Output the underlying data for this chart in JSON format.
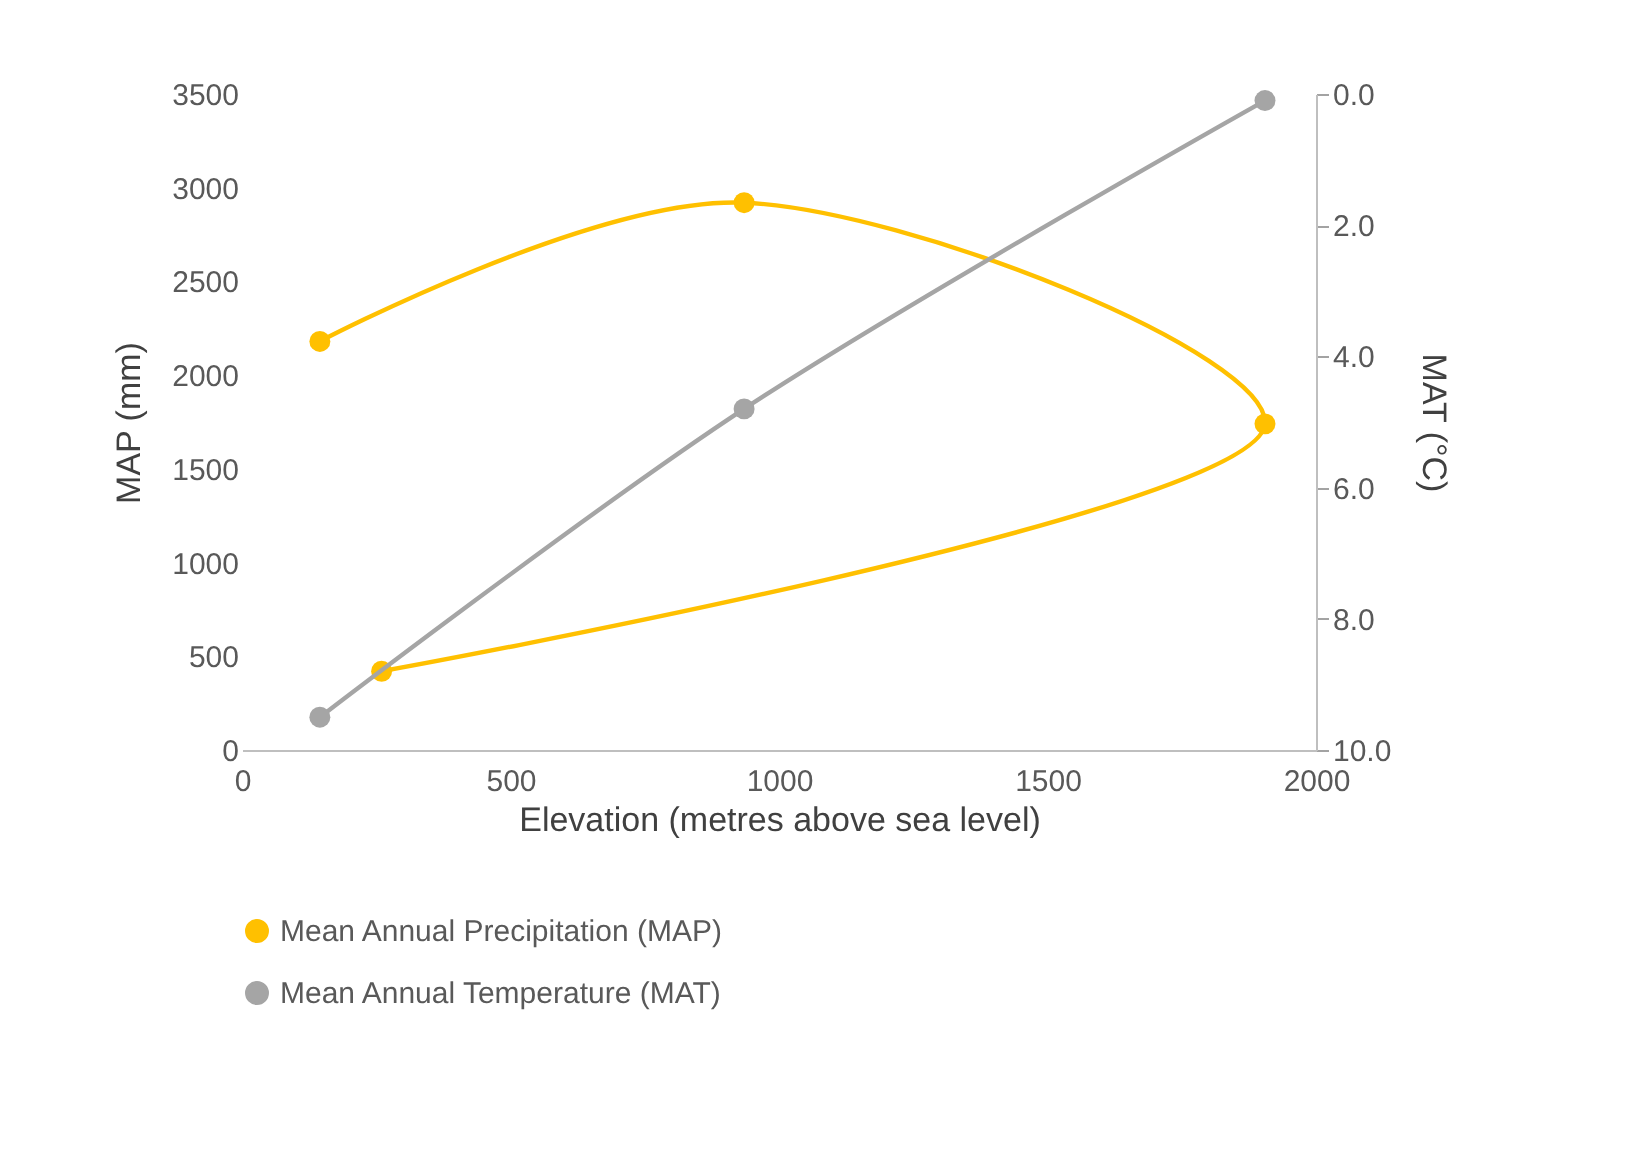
{
  "chart_data": {
    "type": "line",
    "xlabel": "Elevation (metres above sea level)",
    "ylabel": "MAP (mm)",
    "y2label": "MAT (°C)",
    "xlim": [
      0,
      2000
    ],
    "xticks": [
      0,
      500,
      1000,
      1500,
      2000
    ],
    "ylim": [
      0,
      3500
    ],
    "yticks": [
      0,
      500,
      1000,
      1500,
      2000,
      2500,
      3000,
      3500
    ],
    "y2lim": [
      10,
      0
    ],
    "y2ticks": [
      {
        "value": 0,
        "label": "0.0"
      },
      {
        "value": 2,
        "label": "2.0"
      },
      {
        "value": 4,
        "label": "4.0"
      },
      {
        "value": 6,
        "label": "6.0"
      },
      {
        "value": 8,
        "label": "8.0"
      },
      {
        "value": 10,
        "label": "10.0"
      }
    ],
    "legend": "bottom",
    "marker": "circle",
    "line_style": "solid",
    "grid": false,
    "series": [
      {
        "name": "Mean Annual Precipitation (MAP)",
        "color": "#ffc000",
        "x": [
          145,
          935,
          1905,
          260
        ],
        "values": [
          2180,
          2920,
          1740,
          420
        ]
      },
      {
        "name": "Mean Annual Temperature (MAT)",
        "color": "#a5a5a5",
        "axis": "y2",
        "x": [
          145,
          935,
          1905
        ],
        "values": [
          9.5,
          4.8,
          0.1
        ]
      }
    ]
  }
}
